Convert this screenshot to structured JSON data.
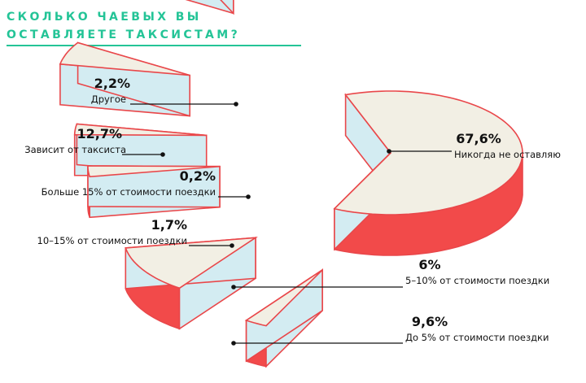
{
  "title": "Сколько чаевых вы оставляете таксистам?",
  "colors": {
    "accent": "#24c497",
    "top": "#f2efe4",
    "inner": "#d3ecf2",
    "side": "#f24a4a",
    "stroke": "#e9474a"
  },
  "chart_data": {
    "type": "pie",
    "slices": [
      {
        "label": "Никогда не оставляю",
        "value": 67.6,
        "value_label": "67,6%"
      },
      {
        "label": "Другое",
        "value": 2.2,
        "value_label": "2,2%"
      },
      {
        "label": "Зависит от таксиста",
        "value": 12.7,
        "value_label": "12,7%"
      },
      {
        "label": "Больше 15% от стоимости поездки",
        "value": 0.2,
        "value_label": "0,2%"
      },
      {
        "label": "10–15% от стоимости поездки",
        "value": 1.7,
        "value_label": "1,7%"
      },
      {
        "label": "5–10% от стоимости поездки",
        "value": 6,
        "value_label": "6%"
      },
      {
        "label": "До 5% от стоимости поездки",
        "value": 9.6,
        "value_label": "9,6%"
      }
    ]
  }
}
